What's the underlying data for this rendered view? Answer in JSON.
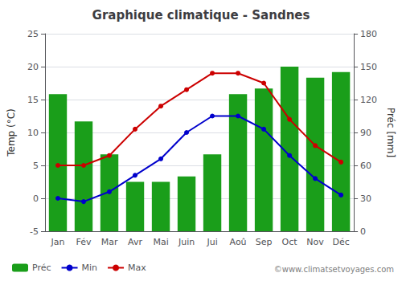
{
  "chart_data": {
    "type": "bar",
    "title": "Graphique climatique - Sandnes",
    "categories": [
      "Jan",
      "Fév",
      "Mar",
      "Avr",
      "Mai",
      "Juin",
      "Jui",
      "Aoû",
      "Sep",
      "Oct",
      "Nov",
      "Déc"
    ],
    "series": [
      {
        "name": "Préc",
        "type": "bar",
        "color": "#1a9e1a",
        "axis": "y2",
        "values": [
          125,
          100,
          70,
          45,
          45,
          50,
          70,
          125,
          130,
          150,
          140,
          145
        ]
      },
      {
        "name": "Min",
        "type": "line",
        "color": "#0000cc",
        "marker": "circle",
        "values": [
          0,
          -0.5,
          1,
          3.5,
          6,
          10,
          12.5,
          12.5,
          10.5,
          6.5,
          3,
          0.5
        ]
      },
      {
        "name": "Max",
        "type": "line",
        "color": "#cc0000",
        "marker": "circle",
        "values": [
          5,
          5,
          6.5,
          10.5,
          14,
          16.5,
          19,
          19,
          17.5,
          12,
          8,
          5.5
        ]
      }
    ],
    "ylabel": "Temp (°C)",
    "y2label": "Préc [mm]",
    "ylim": [
      -5,
      25
    ],
    "yticks": [
      -5,
      0,
      5,
      10,
      15,
      20,
      25
    ],
    "y2lim": [
      0,
      180
    ],
    "y2ticks": [
      0,
      30,
      60,
      90,
      120,
      150,
      180
    ],
    "grid": true,
    "legend": "bottom",
    "annotations": [
      "©www.climatsetvoyages.com"
    ]
  }
}
